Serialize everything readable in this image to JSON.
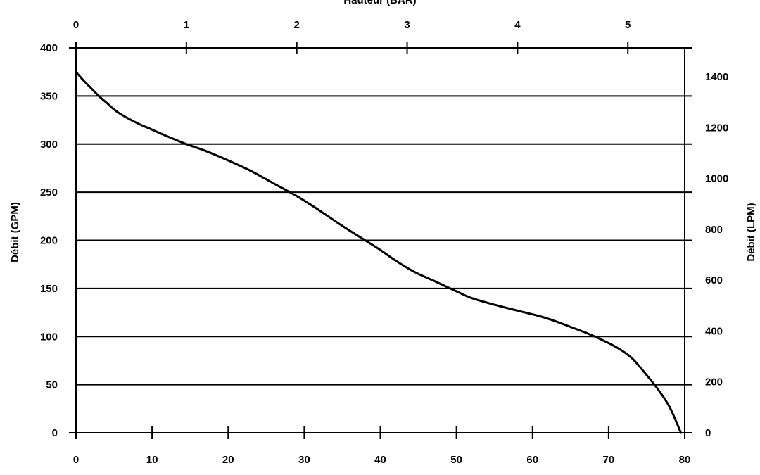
{
  "chart_data": {
    "type": "line",
    "top_axis_title": "Hauteur (BAR)",
    "left_axis_title": "Débit (GPM)",
    "right_axis_title": "Débit (LPM)",
    "x_bottom": {
      "range": [
        0,
        80
      ],
      "ticks": [
        "0",
        "10",
        "20",
        "30",
        "40",
        "50",
        "60",
        "70",
        "80"
      ]
    },
    "x_top": {
      "range": [
        0,
        5.515
      ],
      "ticks": [
        "0",
        "1",
        "2",
        "3",
        "4",
        "5"
      ]
    },
    "y_left": {
      "range": [
        0,
        400
      ],
      "ticks": [
        "0",
        "50",
        "100",
        "150",
        "200",
        "250",
        "300",
        "350",
        "400"
      ]
    },
    "y_right": {
      "range": [
        0,
        1514
      ],
      "ticks": [
        "0",
        "200",
        "400",
        "600",
        "800",
        "1000",
        "1200",
        "1400"
      ]
    },
    "grid": true,
    "series": [
      {
        "color": "#000000",
        "x": [
          0,
          1,
          2,
          3,
          4,
          5.5,
          8,
          10,
          12,
          14.5,
          17,
          20,
          23,
          26,
          29,
          32,
          35,
          38,
          40,
          42,
          44.5,
          47,
          50,
          52,
          55,
          58,
          61,
          63,
          65,
          67,
          69,
          71,
          73,
          75,
          76.5,
          78,
          79.5
        ],
        "y": [
          375,
          366,
          358,
          350,
          343,
          333,
          322,
          315,
          308,
          300,
          293,
          283,
          272,
          259,
          246,
          231,
          215,
          200,
          190,
          179,
          167,
          158,
          147,
          140,
          133,
          127,
          121,
          116,
          110,
          104,
          97,
          89,
          78,
          60,
          45,
          27,
          0
        ]
      }
    ]
  }
}
